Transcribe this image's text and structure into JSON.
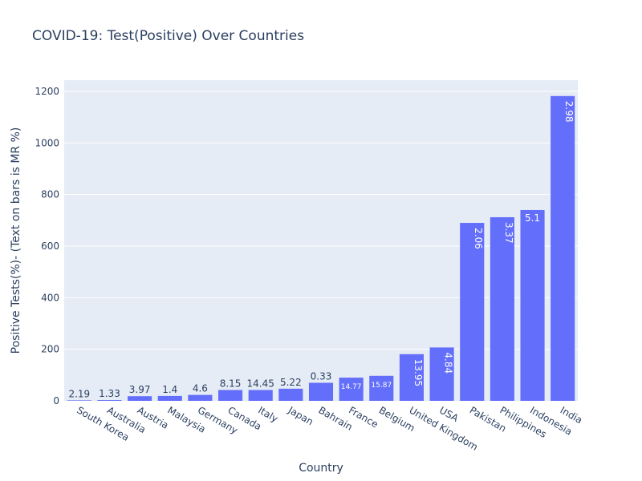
{
  "chart_data": {
    "type": "bar",
    "title": "COVID-19: Test(Positive) Over Countries",
    "xlabel": "Country",
    "ylabel": "Positive Tests(%)- (Text on bars is MR %)",
    "ylim": [
      0,
      1200
    ],
    "yticks": [
      0,
      200,
      400,
      600,
      800,
      1000,
      1200
    ],
    "grid": true,
    "bar_color": "#636efa",
    "plot_background": "#e5ecf6",
    "categories": [
      "South Korea",
      "Australia",
      "Austria",
      "Malaysia",
      "Germany",
      "Canada",
      "Italy",
      "Japan",
      "Bahrain",
      "France",
      "Belgium",
      "United Kingdom",
      "USA",
      "Pakistan",
      "Philippines",
      "Indonesia",
      "India"
    ],
    "values": [
      2,
      3,
      18,
      19,
      23,
      42,
      42,
      47,
      70,
      90,
      97,
      181,
      207,
      690,
      712,
      740,
      1182
    ],
    "bar_text": [
      "2.19",
      "1.33",
      "3.97",
      "1.4",
      "4.6",
      "8.15",
      "14.45",
      "5.22",
      "0.33",
      "14.77",
      "15.87",
      "13.95",
      "4.84",
      "2.06",
      "3.37",
      "5.1",
      "2.98"
    ]
  }
}
